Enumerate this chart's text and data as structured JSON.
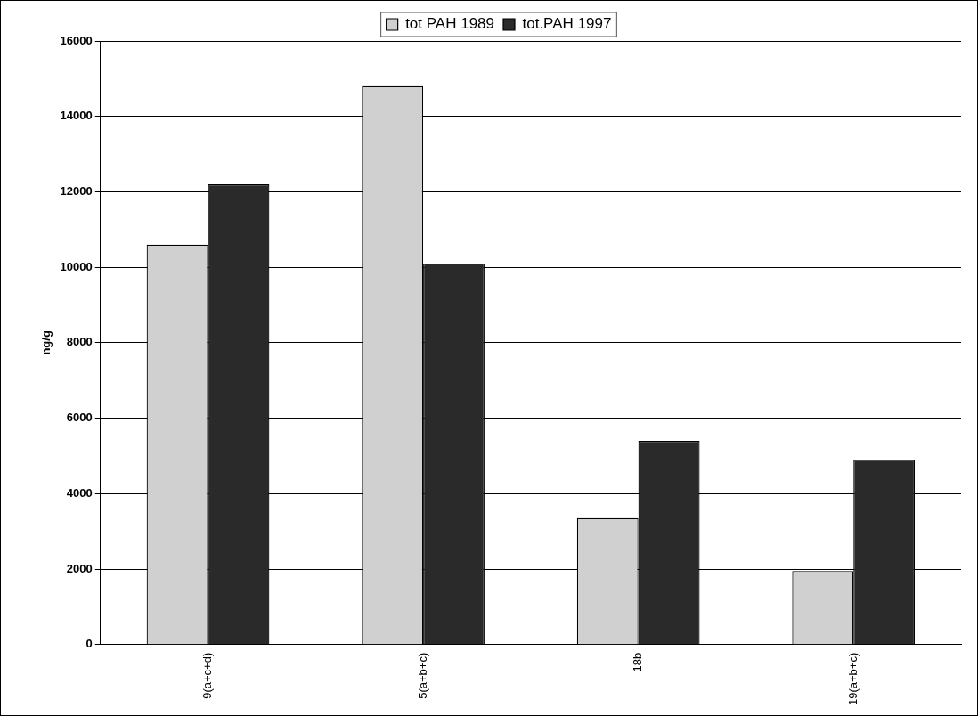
{
  "chart_data": {
    "type": "bar",
    "ylabel": "ng/g",
    "categories": [
      "9(a+c+d)",
      "5(a+b+c)",
      "18b",
      "19(a+b+c)"
    ],
    "series": [
      {
        "name": "tot PAH 1989",
        "color": "#d0d0d0",
        "values": [
          10600,
          14800,
          3350,
          1950
        ]
      },
      {
        "name": "tot.PAH 1997",
        "color": "#2a2a2a",
        "values": [
          12200,
          10100,
          5400,
          4900
        ]
      }
    ],
    "ylim": [
      0,
      16000
    ],
    "yticks": [
      0,
      2000,
      4000,
      6000,
      8000,
      10000,
      12000,
      14000,
      16000
    ],
    "grid": "y",
    "legend": "top"
  }
}
